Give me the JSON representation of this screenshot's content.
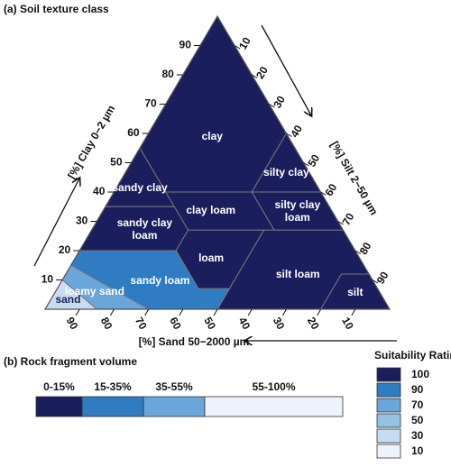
{
  "panel_a": {
    "title": "(a) Soil texture class",
    "clay_axis": {
      "label": "[%] Clay 0−2 µm",
      "ticks": [
        10,
        20,
        30,
        40,
        50,
        60,
        70,
        80,
        90
      ]
    },
    "silt_axis": {
      "label": "[%] Silt 2−50 µm",
      "ticks": [
        10,
        20,
        30,
        40,
        50,
        60,
        70,
        80,
        90
      ]
    },
    "sand_axis": {
      "label": "[%] Sand 50−2000 µm",
      "ticks": [
        90,
        80,
        70,
        60,
        50,
        40,
        30,
        20,
        10
      ]
    },
    "classes": [
      {
        "name": "clay",
        "rating": 100,
        "vertices": [
          [
            0,
            55
          ],
          [
            15,
            40
          ],
          [
            40,
            40
          ],
          [
            40,
            60
          ],
          [
            0,
            100
          ]
        ]
      },
      {
        "name": "silty clay",
        "rating": 100,
        "vertices": [
          [
            40,
            40
          ],
          [
            60,
            40
          ],
          [
            40,
            60
          ]
        ]
      },
      {
        "name": "sandy clay",
        "rating": 100,
        "vertices": [
          [
            0,
            35
          ],
          [
            20,
            35
          ],
          [
            0,
            55
          ]
        ]
      },
      {
        "name": "clay loam",
        "rating": 100,
        "vertices": [
          [
            28,
            27
          ],
          [
            53,
            27
          ],
          [
            40,
            40
          ],
          [
            15,
            40
          ],
          [
            20,
            35
          ]
        ]
      },
      {
        "name": "silty clay loam",
        "rating": 100,
        "vertices": [
          [
            53,
            27
          ],
          [
            73,
            27
          ],
          [
            60,
            40
          ],
          [
            40,
            40
          ]
        ]
      },
      {
        "name": "sandy clay loam",
        "rating": 100,
        "vertices": [
          [
            0,
            20
          ],
          [
            28,
            20
          ],
          [
            28,
            27
          ],
          [
            20,
            35
          ],
          [
            0,
            35
          ]
        ]
      },
      {
        "name": "loam",
        "rating": 100,
        "vertices": [
          [
            50,
            7
          ],
          [
            50,
            27
          ],
          [
            28,
            27
          ],
          [
            28,
            20
          ],
          [
            41,
            7
          ]
        ]
      },
      {
        "name": "silt loam",
        "rating": 100,
        "vertices": [
          [
            50,
            0
          ],
          [
            80,
            0
          ],
          [
            80,
            12
          ],
          [
            88,
            12
          ],
          [
            73,
            27
          ],
          [
            50,
            27
          ],
          [
            50,
            7
          ]
        ]
      },
      {
        "name": "silt",
        "rating": 100,
        "vertices": [
          [
            80,
            0
          ],
          [
            100,
            0
          ],
          [
            88,
            12
          ],
          [
            80,
            12
          ]
        ]
      },
      {
        "name": "sandy loam",
        "rating": 90,
        "vertices": [
          [
            30,
            0
          ],
          [
            50,
            0
          ],
          [
            50,
            7
          ],
          [
            41,
            7
          ],
          [
            28,
            20
          ],
          [
            0,
            20
          ],
          [
            0,
            15
          ]
        ]
      },
      {
        "name": "loamy sand",
        "rating": 70,
        "vertices": [
          [
            15,
            0
          ],
          [
            30,
            0
          ],
          [
            0,
            15
          ],
          [
            0,
            10
          ]
        ]
      },
      {
        "name": "sand",
        "rating": 30,
        "vertices": [
          [
            0,
            0
          ],
          [
            15,
            0
          ],
          [
            0,
            10
          ]
        ]
      }
    ]
  },
  "panel_b": {
    "title": "(b) Rock fragment volume",
    "segments": [
      {
        "label": "0-15%",
        "range": [
          0,
          15
        ],
        "rating": 100
      },
      {
        "label": "15-35%",
        "range": [
          15,
          35
        ],
        "rating": 90
      },
      {
        "label": "35-55%",
        "range": [
          35,
          55
        ],
        "rating": 70
      },
      {
        "label": "55-100%",
        "range": [
          55,
          100
        ],
        "rating": 10
      }
    ]
  },
  "legend": {
    "title": "Suitability Rating",
    "items": [
      {
        "value": 100,
        "color": "#1b1e5c"
      },
      {
        "value": 90,
        "color": "#2f7cc2"
      },
      {
        "value": 70,
        "color": "#6aa6da"
      },
      {
        "value": 50,
        "color": "#93c2e4"
      },
      {
        "value": 30,
        "color": "#c8dcf1"
      },
      {
        "value": 10,
        "color": "#eef3fb"
      }
    ]
  }
}
